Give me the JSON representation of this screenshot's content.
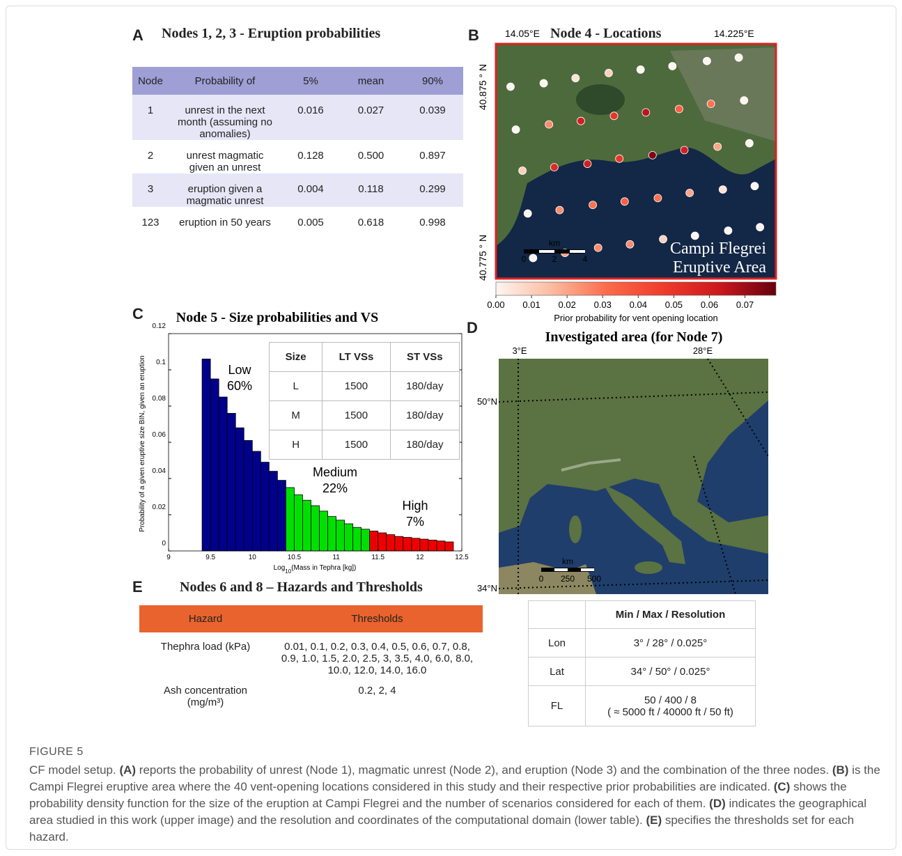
{
  "panel_a": {
    "letter": "A",
    "title": "Nodes 1, 2, 3 - Eruption probabilities",
    "header": [
      "Node",
      "Probability of",
      "5%",
      "mean",
      "90%"
    ],
    "rows": [
      [
        "1",
        "unrest in the next month (assuming no anomalies)",
        "0.016",
        "0.027",
        "0.039"
      ],
      [
        "2",
        "unrest magmatic given an unrest",
        "0.128",
        "0.500",
        "0.897"
      ],
      [
        "3",
        "eruption given a magmatic unrest",
        "0.004",
        "0.118",
        "0.299"
      ],
      [
        "123",
        "eruption in 50 years",
        "0.005",
        "0.618",
        "0.998"
      ]
    ]
  },
  "panel_b": {
    "letter": "B",
    "title": "Node 4 - Locations",
    "lon_labels": [
      "14.05°E",
      "14.225°E"
    ],
    "lat_labels": [
      "40.875 ° N",
      "40.775 ° N"
    ],
    "area_label": [
      "Campi Flegrei",
      "Eruptive Area"
    ],
    "scale": {
      "unit": "km",
      "ticks": [
        "0",
        "2",
        "4"
      ]
    },
    "lonlim": [
      14.043,
      14.254
    ],
    "latlim": [
      40.763,
      40.9
    ],
    "vents": {
      "lon": [
        14.054,
        14.079,
        14.103,
        14.128,
        14.152,
        14.176,
        14.202,
        14.226,
        14.058,
        14.083,
        14.107,
        14.132,
        14.156,
        14.181,
        14.205,
        14.23,
        14.063,
        14.087,
        14.112,
        14.136,
        14.161,
        14.185,
        14.21,
        14.234,
        14.067,
        14.091,
        14.116,
        14.14,
        14.165,
        14.189,
        14.214,
        14.238,
        14.071,
        14.095,
        14.12,
        14.144,
        14.169,
        14.193,
        14.218,
        14.242
      ],
      "lat": [
        40.875,
        40.877,
        40.88,
        40.883,
        40.885,
        40.887,
        40.89,
        40.892,
        40.85,
        40.853,
        40.855,
        40.858,
        40.86,
        40.862,
        40.865,
        40.867,
        40.826,
        40.828,
        40.83,
        40.833,
        40.835,
        40.838,
        40.84,
        40.842,
        40.801,
        40.803,
        40.806,
        40.808,
        40.81,
        40.813,
        40.815,
        40.817,
        40.775,
        40.778,
        40.781,
        40.783,
        40.786,
        40.788,
        40.791,
        40.793
      ],
      "values": [
        0,
        0,
        0.005,
        0.01,
        0,
        0,
        0,
        0,
        0,
        0.025,
        0.06,
        0.05,
        0.065,
        0.035,
        0.03,
        0,
        0.01,
        0.055,
        0.06,
        0.05,
        0.075,
        0.06,
        0.02,
        0,
        0,
        0.025,
        0.03,
        0.035,
        0.03,
        0.02,
        0.005,
        0,
        0,
        0.02,
        0.025,
        0.025,
        0.01,
        0,
        0,
        0
      ]
    },
    "colorbar": {
      "clim": [
        0,
        0.0787
      ],
      "colors": [
        "#fff5f0",
        "#fcbba1",
        "#fb6a4a",
        "#ef3b2c",
        "#cb181d",
        "#67000d"
      ],
      "ticks": [
        {
          "value": 0,
          "label": "0.00"
        },
        {
          "value": 0.01,
          "label": "0.01"
        },
        {
          "value": 0.02,
          "label": "0.02"
        },
        {
          "value": 0.03,
          "label": "0.03"
        },
        {
          "value": 0.04,
          "label": "0.04"
        },
        {
          "value": 0.05,
          "label": "0.05"
        },
        {
          "value": 0.06,
          "label": "0.06"
        },
        {
          "value": 0.07,
          "label": "0.07"
        }
      ],
      "label": "Prior probability for vent opening location"
    }
  },
  "chart_data": {
    "type": "bar",
    "letter": "C",
    "title": "Node 5 - Size probabilities and VS",
    "x_label": {
      "pre": "Log",
      "sub": "10",
      "post": "(Mass in Tephra [kg])"
    },
    "y_label": "Probability of a given eruptive size BIN, given an eruption",
    "xlim": [
      9,
      12.5
    ],
    "ylim": [
      0,
      0.12
    ],
    "xticks": [
      9,
      9.5,
      10,
      10.5,
      11,
      11.5,
      12,
      12.5
    ],
    "yticks": [
      0,
      0.02,
      0.04,
      0.06,
      0.08,
      0.1,
      0.12
    ],
    "series": [
      {
        "name": "Low",
        "label": "60%",
        "color": "#00008b",
        "x": [
          9.45,
          9.55,
          9.65,
          9.75,
          9.85,
          9.95,
          10.05,
          10.15,
          10.25,
          10.35
        ],
        "values": [
          0.106,
          0.095,
          0.085,
          0.076,
          0.068,
          0.061,
          0.055,
          0.049,
          0.044,
          0.039
        ]
      },
      {
        "name": "Medium",
        "label": "22%",
        "color": "#00e000",
        "x": [
          10.45,
          10.55,
          10.65,
          10.75,
          10.85,
          10.95,
          11.05,
          11.15,
          11.25,
          11.35
        ],
        "values": [
          0.035,
          0.031,
          0.028,
          0.025,
          0.022,
          0.019,
          0.017,
          0.015,
          0.013,
          0.012
        ]
      },
      {
        "name": "High",
        "label": "7%",
        "color": "#ee0000",
        "x": [
          11.45,
          11.55,
          11.65,
          11.75,
          11.85,
          11.95,
          12.05,
          12.15,
          12.25,
          12.35
        ],
        "values": [
          0.011,
          0.01,
          0.009,
          0.008,
          0.0075,
          0.007,
          0.0065,
          0.006,
          0.0055,
          0.005
        ]
      }
    ],
    "table": {
      "header": [
        "Size",
        "LT VSs",
        "ST VSs"
      ],
      "rows": [
        [
          "L",
          "1500",
          "180/day"
        ],
        [
          "M",
          "1500",
          "180/day"
        ],
        [
          "H",
          "1500",
          "180/day"
        ]
      ]
    }
  },
  "panel_d": {
    "letter": "D",
    "title": "Investigated area (for Node 7)",
    "lon_labels": [
      "3°E",
      "28°E"
    ],
    "lat_labels": [
      "50°N",
      "34°N"
    ],
    "scale": {
      "unit": "km",
      "ticks": [
        "0",
        "250",
        "500"
      ]
    },
    "table": {
      "header": [
        "Min / Max / Resolution"
      ],
      "rows": [
        [
          "Lon",
          "3° / 28° / 0.025°"
        ],
        [
          "Lat",
          "34° / 50° / 0.025°"
        ],
        [
          "FL",
          "50 / 400 / 8\n( ≈ 5000 ft / 40000 ft / 50 ft)"
        ]
      ]
    }
  },
  "panel_e": {
    "letter": "E",
    "title": "Nodes 6 and 8 – Hazards and Thresholds",
    "header": [
      "Hazard",
      "Thresholds"
    ],
    "rows": [
      [
        "Thephra load (kPa)",
        "0.01, 0.1, 0.2, 0.3, 0.4, 0.5, 0.6, 0.7, 0.8, 0.9, 1.0, 1.5, 2.0, 2.5, 3, 3.5, 4.0, 6.0, 8.0, 10.0, 12.0, 14.0, 16.0"
      ],
      [
        "Ash concentration (mg/m³)",
        "0.2, 2, 4"
      ]
    ]
  },
  "caption": {
    "label": "FIGURE 5",
    "segments": [
      {
        "text": "CF model setup. "
      },
      {
        "text": "(A)",
        "bold": true
      },
      {
        "text": " reports the probability of unrest (Node 1), magmatic unrest (Node 2), and eruption (Node 3) and the combination of the three nodes. "
      },
      {
        "text": "(B)",
        "bold": true
      },
      {
        "text": " is the Campi Flegrei eruptive area where the 40 vent-opening locations considered in this study and their respective prior probabilities are indicated. "
      },
      {
        "text": "(C)",
        "bold": true
      },
      {
        "text": " shows the probability density function for the size of the eruption at Campi Flegrei and the number of scenarios considered for each of them. "
      },
      {
        "text": "(D)",
        "bold": true
      },
      {
        "text": " indicates the geographical area studied in this work (upper image) and the resolution and coordinates of the computational domain (lower table). "
      },
      {
        "text": "(E)",
        "bold": true
      },
      {
        "text": " specifies the thresholds set for each hazard."
      }
    ]
  }
}
